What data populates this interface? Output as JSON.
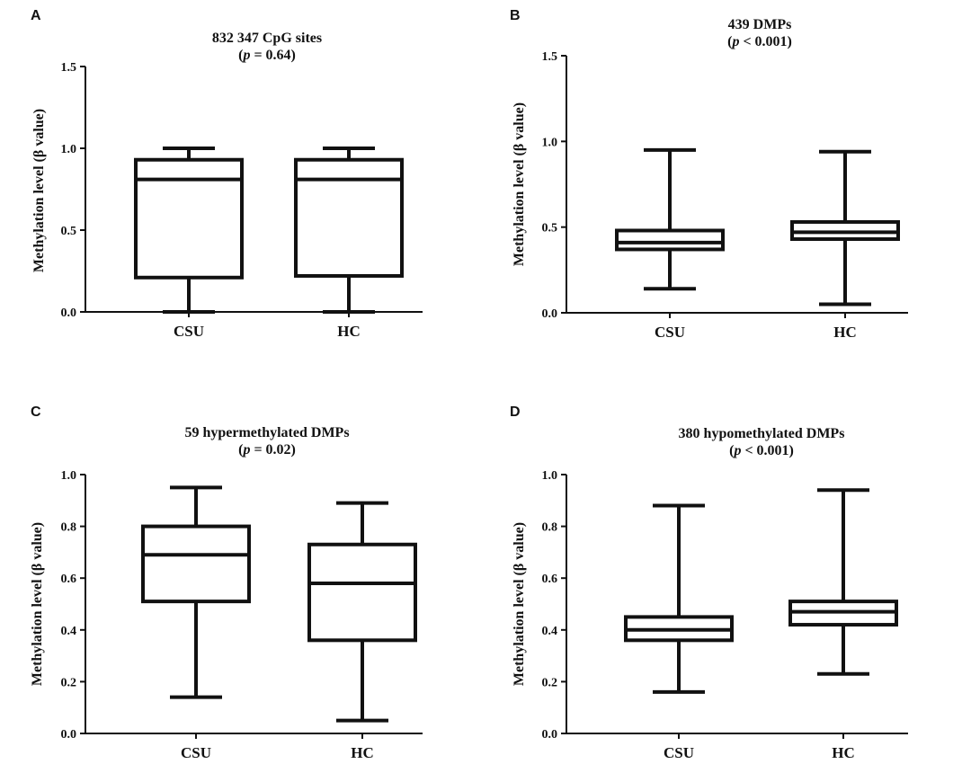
{
  "chart_data": [
    {
      "panel": "A",
      "type": "box",
      "title": "832 347 CpG sites",
      "pvalue": {
        "prefix": "(",
        "italic": "p",
        "rest": " = 0.64)"
      },
      "ylabel": "Methylation level (β value)",
      "ylim": [
        0,
        1.5
      ],
      "yticks": [
        0,
        0.5,
        1.0,
        1.5
      ],
      "ytick_labels": [
        "0.0",
        "0.5",
        "1.0",
        "1.5"
      ],
      "categories": [
        "CSU",
        "HC"
      ],
      "boxes": [
        {
          "name": "CSU",
          "min": 0.0,
          "q1": 0.21,
          "median": 0.81,
          "q3": 0.93,
          "max": 1.0
        },
        {
          "name": "HC",
          "min": 0.0,
          "q1": 0.22,
          "median": 0.81,
          "q3": 0.93,
          "max": 1.0
        }
      ]
    },
    {
      "panel": "B",
      "type": "box",
      "title": "439 DMPs",
      "pvalue": {
        "prefix": "(",
        "italic": "p",
        "rest": " < 0.001)"
      },
      "ylabel": "Methylation level (β value)",
      "ylim": [
        0,
        1.5
      ],
      "yticks": [
        0,
        0.5,
        1.0,
        1.5
      ],
      "ytick_labels": [
        "0.0",
        "0.5",
        "1.0",
        "1.5"
      ],
      "categories": [
        "CSU",
        "HC"
      ],
      "boxes": [
        {
          "name": "CSU",
          "min": 0.14,
          "q1": 0.37,
          "median": 0.41,
          "q3": 0.48,
          "max": 0.95
        },
        {
          "name": "HC",
          "min": 0.05,
          "q1": 0.43,
          "median": 0.47,
          "q3": 0.53,
          "max": 0.94
        }
      ]
    },
    {
      "panel": "C",
      "type": "box",
      "title": "59 hypermethylated DMPs",
      "pvalue": {
        "prefix": "(",
        "italic": "p",
        "rest": " = 0.02)"
      },
      "ylabel": "Methylation level (β value)",
      "ylim": [
        0,
        1.0
      ],
      "yticks": [
        0,
        0.2,
        0.4,
        0.6,
        0.8,
        1.0
      ],
      "ytick_labels": [
        "0.0",
        "0.2",
        "0.4",
        "0.6",
        "0.8",
        "1.0"
      ],
      "categories": [
        "CSU",
        "HC"
      ],
      "boxes": [
        {
          "name": "CSU",
          "min": 0.14,
          "q1": 0.51,
          "median": 0.69,
          "q3": 0.8,
          "max": 0.95
        },
        {
          "name": "HC",
          "min": 0.05,
          "q1": 0.36,
          "median": 0.58,
          "q3": 0.73,
          "max": 0.89
        }
      ]
    },
    {
      "panel": "D",
      "type": "box",
      "title": "380 hypomethylated DMPs",
      "pvalue": {
        "prefix": "(",
        "italic": "p",
        "rest": " < 0.001)"
      },
      "ylabel": "Methylation level (β value)",
      "ylim": [
        0,
        1.0
      ],
      "yticks": [
        0,
        0.2,
        0.4,
        0.6,
        0.8,
        1.0
      ],
      "ytick_labels": [
        "0.0",
        "0.2",
        "0.4",
        "0.6",
        "0.8",
        "1.0"
      ],
      "categories": [
        "CSU",
        "HC"
      ],
      "boxes": [
        {
          "name": "CSU",
          "min": 0.16,
          "q1": 0.36,
          "median": 0.4,
          "q3": 0.45,
          "max": 0.88
        },
        {
          "name": "HC",
          "min": 0.23,
          "q1": 0.42,
          "median": 0.47,
          "q3": 0.51,
          "max": 0.94
        }
      ]
    }
  ]
}
